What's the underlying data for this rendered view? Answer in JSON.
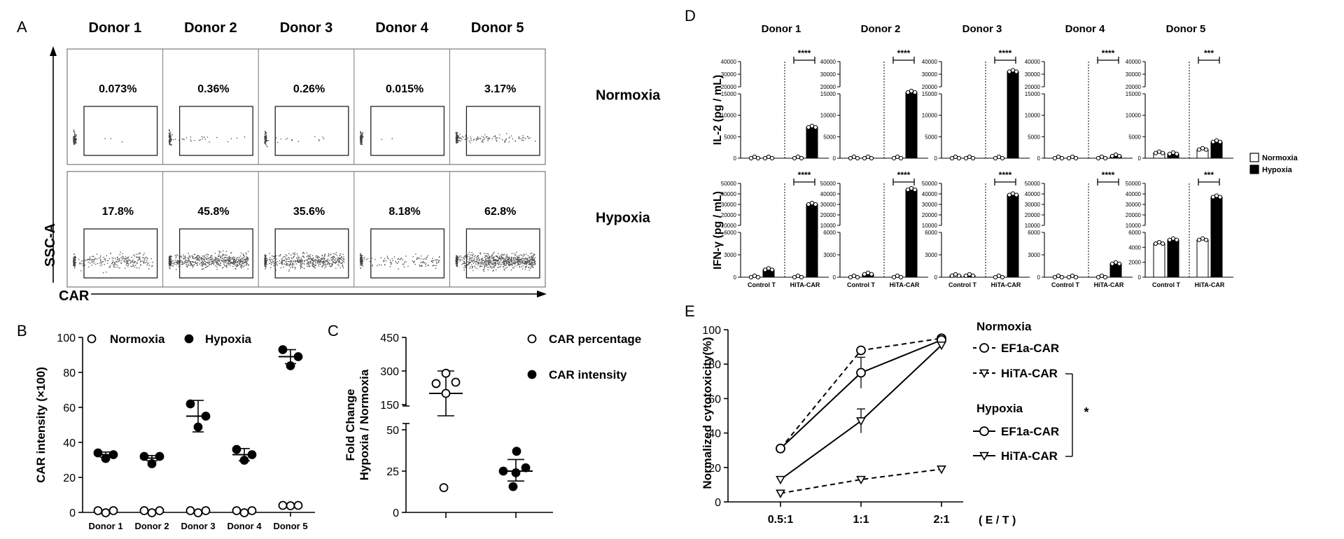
{
  "panel_letters": {
    "A": "A",
    "B": "B",
    "C": "C",
    "D": "D",
    "E": "E"
  },
  "chart_data": [
    {
      "panel": "A",
      "type": "scatter",
      "xlabel": "CAR",
      "ylabel": "SSC-A",
      "donors": [
        "Donor 1",
        "Donor 2",
        "Donor 3",
        "Donor 4",
        "Donor 5"
      ],
      "rows": [
        {
          "name": "Normoxia",
          "gate_percent": [
            "0.073%",
            "0.36%",
            "0.26%",
            "0.015%",
            "3.17%"
          ]
        },
        {
          "name": "Hypoxia",
          "gate_percent": [
            "17.8%",
            "45.8%",
            "35.6%",
            "8.18%",
            "62.8%"
          ]
        }
      ]
    },
    {
      "panel": "B",
      "type": "scatter",
      "ylabel": "CAR intensity (×100)",
      "categories": [
        "Donor 1",
        "Donor 2",
        "Donor 3",
        "Donor 4",
        "Donor 5"
      ],
      "ylim": [
        0,
        100
      ],
      "yticks": [
        0,
        20,
        40,
        60,
        80,
        100
      ],
      "series": [
        {
          "name": "Normoxia",
          "marker": "open-circle",
          "points": [
            [
              1,
              1,
              1
            ],
            [
              1,
              1,
              1
            ],
            [
              1,
              1,
              1
            ],
            [
              1,
              1,
              1
            ],
            [
              4,
              5,
              4
            ]
          ],
          "mean": [
            1,
            1,
            1,
            1,
            4.5
          ]
        },
        {
          "name": "Hypoxia",
          "marker": "filled-circle",
          "points": [
            [
              34,
              32,
              33
            ],
            [
              32,
              29,
              32
            ],
            [
              62,
              50,
              55
            ],
            [
              36,
              31,
              33
            ],
            [
              93,
              85,
              89
            ]
          ],
          "mean": [
            33,
            31,
            55,
            33,
            89
          ],
          "sd": [
            1.5,
            1.5,
            9,
            3.5,
            4
          ]
        }
      ]
    },
    {
      "panel": "C",
      "type": "scatter",
      "ylabel": "Fold Change Hypoxia / Normoxia",
      "ylim": [
        0,
        450
      ],
      "yticks": [
        0,
        25,
        50,
        150,
        300,
        450
      ],
      "axis_break": [
        50,
        80
      ],
      "categories": [
        "CAR percentage",
        "CAR intensity"
      ],
      "series": [
        {
          "name": "CAR percentage",
          "marker": "open-circle",
          "values": [
            290,
            244,
            250,
            200,
            15
          ],
          "mean": 200,
          "sd": [
            100,
            300
          ]
        },
        {
          "name": "CAR intensity",
          "marker": "filled-circle",
          "values": [
            37,
            27,
            25,
            24,
            19
          ],
          "mean": 25,
          "sd": [
            19,
            32
          ]
        }
      ]
    },
    {
      "panel": "D",
      "type": "bar",
      "groups": [
        "Control T",
        "HiTA-CAR"
      ],
      "donors": [
        "Donor 1",
        "Donor 2",
        "Donor 3",
        "Donor 4",
        "Donor 5"
      ],
      "legend": [
        {
          "name": "Normoxia",
          "color": "#ffffff"
        },
        {
          "name": "Hypoxia",
          "color": "#000000"
        }
      ],
      "rows": [
        {
          "ylabel": "IL-2 (pg / mL)",
          "bottom_ticks": [
            [
              0,
              5000,
              10000,
              15000
            ],
            [
              0,
              5000,
              10000,
              15000
            ],
            [
              0,
              5000,
              10000,
              15000
            ],
            [
              0,
              5000,
              10000,
              15000
            ],
            [
              0,
              5000,
              10000,
              15000
            ]
          ],
          "top_ticks": [
            [
              20000,
              30000,
              40000
            ],
            [
              20000,
              30000,
              40000
            ],
            [
              20000,
              30000,
              40000
            ],
            [
              20000,
              30000,
              40000
            ],
            [
              20000,
              30000,
              40000
            ]
          ],
          "significance": [
            "****",
            "****",
            "****",
            "****",
            "***"
          ],
          "values": [
            [
              [
                0,
                0
              ],
              [
                0,
                7200
              ]
            ],
            [
              [
                0,
                0
              ],
              [
                0,
                15600
              ]
            ],
            [
              [
                0,
                0
              ],
              [
                0,
                32000
              ]
            ],
            [
              [
                0,
                0
              ],
              [
                0,
                500
              ]
            ],
            [
              [
                1200,
                1000
              ],
              [
                2000,
                3800
              ]
            ]
          ]
        },
        {
          "ylabel": "IFN-γ (pg / mL)",
          "bottom_ticks": [
            [
              0,
              3000,
              6000
            ],
            [
              0,
              3000,
              6000
            ],
            [
              0,
              3000,
              6000
            ],
            [
              0,
              3000,
              6000
            ],
            [
              0,
              2000,
              4000,
              6000
            ]
          ],
          "top_ticks": [
            [
              10000,
              20000,
              30000,
              40000,
              50000
            ],
            [
              10000,
              20000,
              30000,
              40000,
              50000
            ],
            [
              10000,
              20000,
              30000,
              40000,
              50000
            ],
            [
              10000,
              20000,
              30000,
              40000,
              50000
            ],
            [
              10000,
              20000,
              30000,
              40000,
              50000
            ]
          ],
          "significance": [
            "****",
            "****",
            "****",
            "****",
            "***"
          ],
          "values": [
            [
              [
                0,
                1000
              ],
              [
                0,
                30000
              ]
            ],
            [
              [
                0,
                400
              ],
              [
                0,
                44000
              ]
            ],
            [
              [
                200,
                200
              ],
              [
                0,
                39000
              ]
            ],
            [
              [
                0,
                0
              ],
              [
                0,
                1800
              ]
            ],
            [
              [
                4500,
                5000
              ],
              [
                5000,
                37000
              ]
            ]
          ]
        }
      ]
    },
    {
      "panel": "E",
      "type": "line",
      "ylabel": "Normalized cytotoxicity(%)",
      "xlabel": "( E / T )",
      "categories": [
        "0.5:1",
        "1:1",
        "2:1"
      ],
      "ylim": [
        0,
        100
      ],
      "yticks": [
        0,
        20,
        40,
        60,
        80,
        100
      ],
      "legend_groups": [
        "Normoxia",
        "Hypoxia"
      ],
      "significance": "*",
      "series": [
        {
          "name": "EF1a-CAR",
          "group": "Normoxia",
          "marker": "circle",
          "dash": true,
          "values": [
            31,
            88,
            95
          ]
        },
        {
          "name": "HiTA-CAR",
          "group": "Normoxia",
          "marker": "triangle",
          "dash": true,
          "values": [
            5,
            13,
            19
          ]
        },
        {
          "name": "EF1a-CAR",
          "group": "Hypoxia",
          "marker": "circle",
          "dash": false,
          "values": [
            31,
            75,
            94
          ]
        },
        {
          "name": "HiTA-CAR",
          "group": "Hypoxia",
          "marker": "triangle",
          "dash": false,
          "values": [
            13,
            47,
            91
          ]
        }
      ]
    }
  ]
}
